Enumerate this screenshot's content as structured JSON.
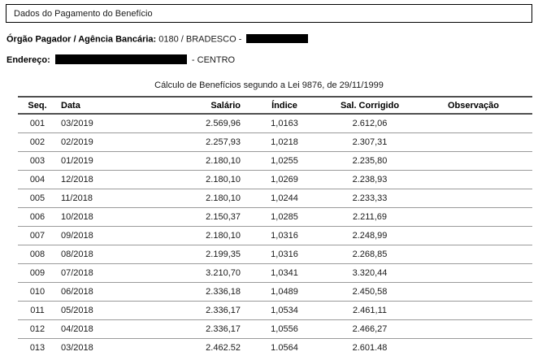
{
  "header": {
    "title_box": "Dados do Pagamento do Benefício",
    "orgao_label": "Órgão Pagador / Agência Bancária:",
    "orgao_value": "0180 / BRADESCO -",
    "endereco_label": "Endereço:",
    "endereco_suffix": "- CENTRO",
    "calc_title": "Cálculo de Benefícios segundo a Lei 9876, de 29/11/1999"
  },
  "colors": {
    "redaction": "#000000",
    "border_dark": "#4f4f4f",
    "border_light": "#9a9a9a",
    "text": "#1a1a1a"
  },
  "table": {
    "columns": [
      "Seq.",
      "Data",
      "Salário",
      "Índice",
      "Sal. Corrigido",
      "Observação"
    ],
    "rows": [
      {
        "seq": "001",
        "data": "03/2019",
        "salario": "2.569,96",
        "indice": "1,0163",
        "corrigido": "2.612,06",
        "obs": ""
      },
      {
        "seq": "002",
        "data": "02/2019",
        "salario": "2.257,93",
        "indice": "1,0218",
        "corrigido": "2.307,31",
        "obs": ""
      },
      {
        "seq": "003",
        "data": "01/2019",
        "salario": "2.180,10",
        "indice": "1,0255",
        "corrigido": "2.235,80",
        "obs": ""
      },
      {
        "seq": "004",
        "data": "12/2018",
        "salario": "2.180,10",
        "indice": "1,0269",
        "corrigido": "2.238,93",
        "obs": ""
      },
      {
        "seq": "005",
        "data": "11/2018",
        "salario": "2.180,10",
        "indice": "1,0244",
        "corrigido": "2.233,33",
        "obs": ""
      },
      {
        "seq": "006",
        "data": "10/2018",
        "salario": "2.150,37",
        "indice": "1,0285",
        "corrigido": "2.211,69",
        "obs": ""
      },
      {
        "seq": "007",
        "data": "09/2018",
        "salario": "2.180,10",
        "indice": "1,0316",
        "corrigido": "2.248,99",
        "obs": ""
      },
      {
        "seq": "008",
        "data": "08/2018",
        "salario": "2.199,35",
        "indice": "1,0316",
        "corrigido": "2.268,85",
        "obs": ""
      },
      {
        "seq": "009",
        "data": "07/2018",
        "salario": "3.210,70",
        "indice": "1,0341",
        "corrigido": "3.320,44",
        "obs": ""
      },
      {
        "seq": "010",
        "data": "06/2018",
        "salario": "2.336,18",
        "indice": "1,0489",
        "corrigido": "2.450,58",
        "obs": ""
      },
      {
        "seq": "011",
        "data": "05/2018",
        "salario": "2.336,17",
        "indice": "1,0534",
        "corrigido": "2.461,11",
        "obs": ""
      },
      {
        "seq": "012",
        "data": "04/2018",
        "salario": "2.336,17",
        "indice": "1,0556",
        "corrigido": "2.466,27",
        "obs": ""
      },
      {
        "seq": "013",
        "data": "03/2018",
        "salario": "2.462.52",
        "indice": "1.0564",
        "corrigido": "2.601.48",
        "obs": ""
      }
    ]
  }
}
